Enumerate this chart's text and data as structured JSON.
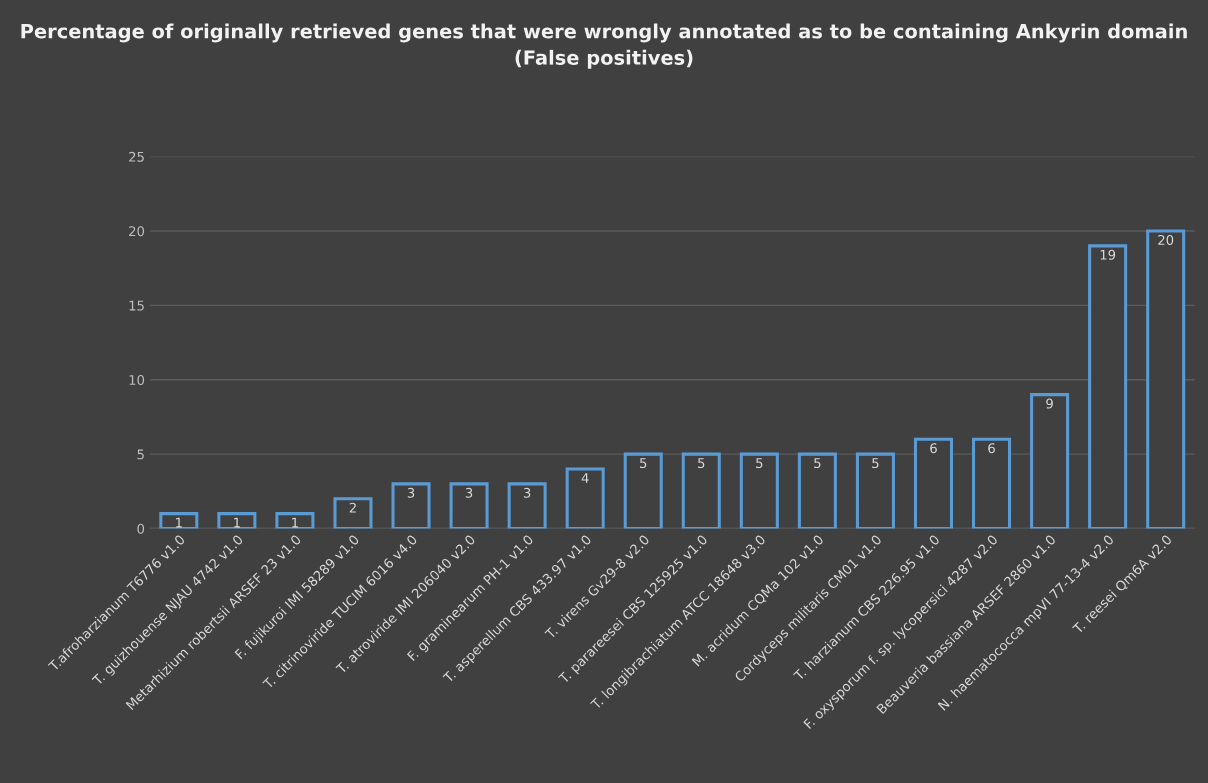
{
  "chart_data": {
    "type": "bar",
    "title": "Percentage of originally retrieved genes that were wrongly annotated as to be containing Ankyrin domain\n(False positives)",
    "categories": [
      "T.afroharzianum T6776 v1.0",
      "T. guizhouense NJAU 4742 v1.0",
      "Metarhizium robertsii ARSEF 23 v1.0",
      "F. fujikuroi IMI 58289 v1.0",
      "T. citrinoviride TUCIM 6016 v4.0",
      "T. atroviride IMI 206040 v2.0",
      "F. graminearum PH-1 v1.0",
      "T. asperellum CBS 433.97 v1.0",
      "T. virens Gv29-8 v2.0",
      "T. parareesei CBS 125925 v1.0",
      "T. longibrachiatum ATCC 18648 v3.0",
      "M. acridum CQMa 102 v1.0",
      "Cordyceps militaris CM01 v1.0",
      "T. harzianum CBS 226.95 v1.0",
      "F. oxysporum f. sp. lycopersici 4287 v2.0",
      "Beauveria bassiana ARSEF 2860 v1.0",
      "N. haematococca mpVI 77-13-4 v2.0",
      "T. reesei Qm6A v2.0"
    ],
    "values": [
      1,
      1,
      1,
      2,
      3,
      3,
      3,
      4,
      5,
      5,
      5,
      5,
      5,
      6,
      6,
      9,
      19,
      20
    ],
    "color": "#5b9bd5",
    "ylim": [
      0,
      25
    ],
    "yticks": [
      0,
      5,
      10,
      15,
      20,
      25
    ],
    "grid": "y",
    "data_labels": true
  }
}
